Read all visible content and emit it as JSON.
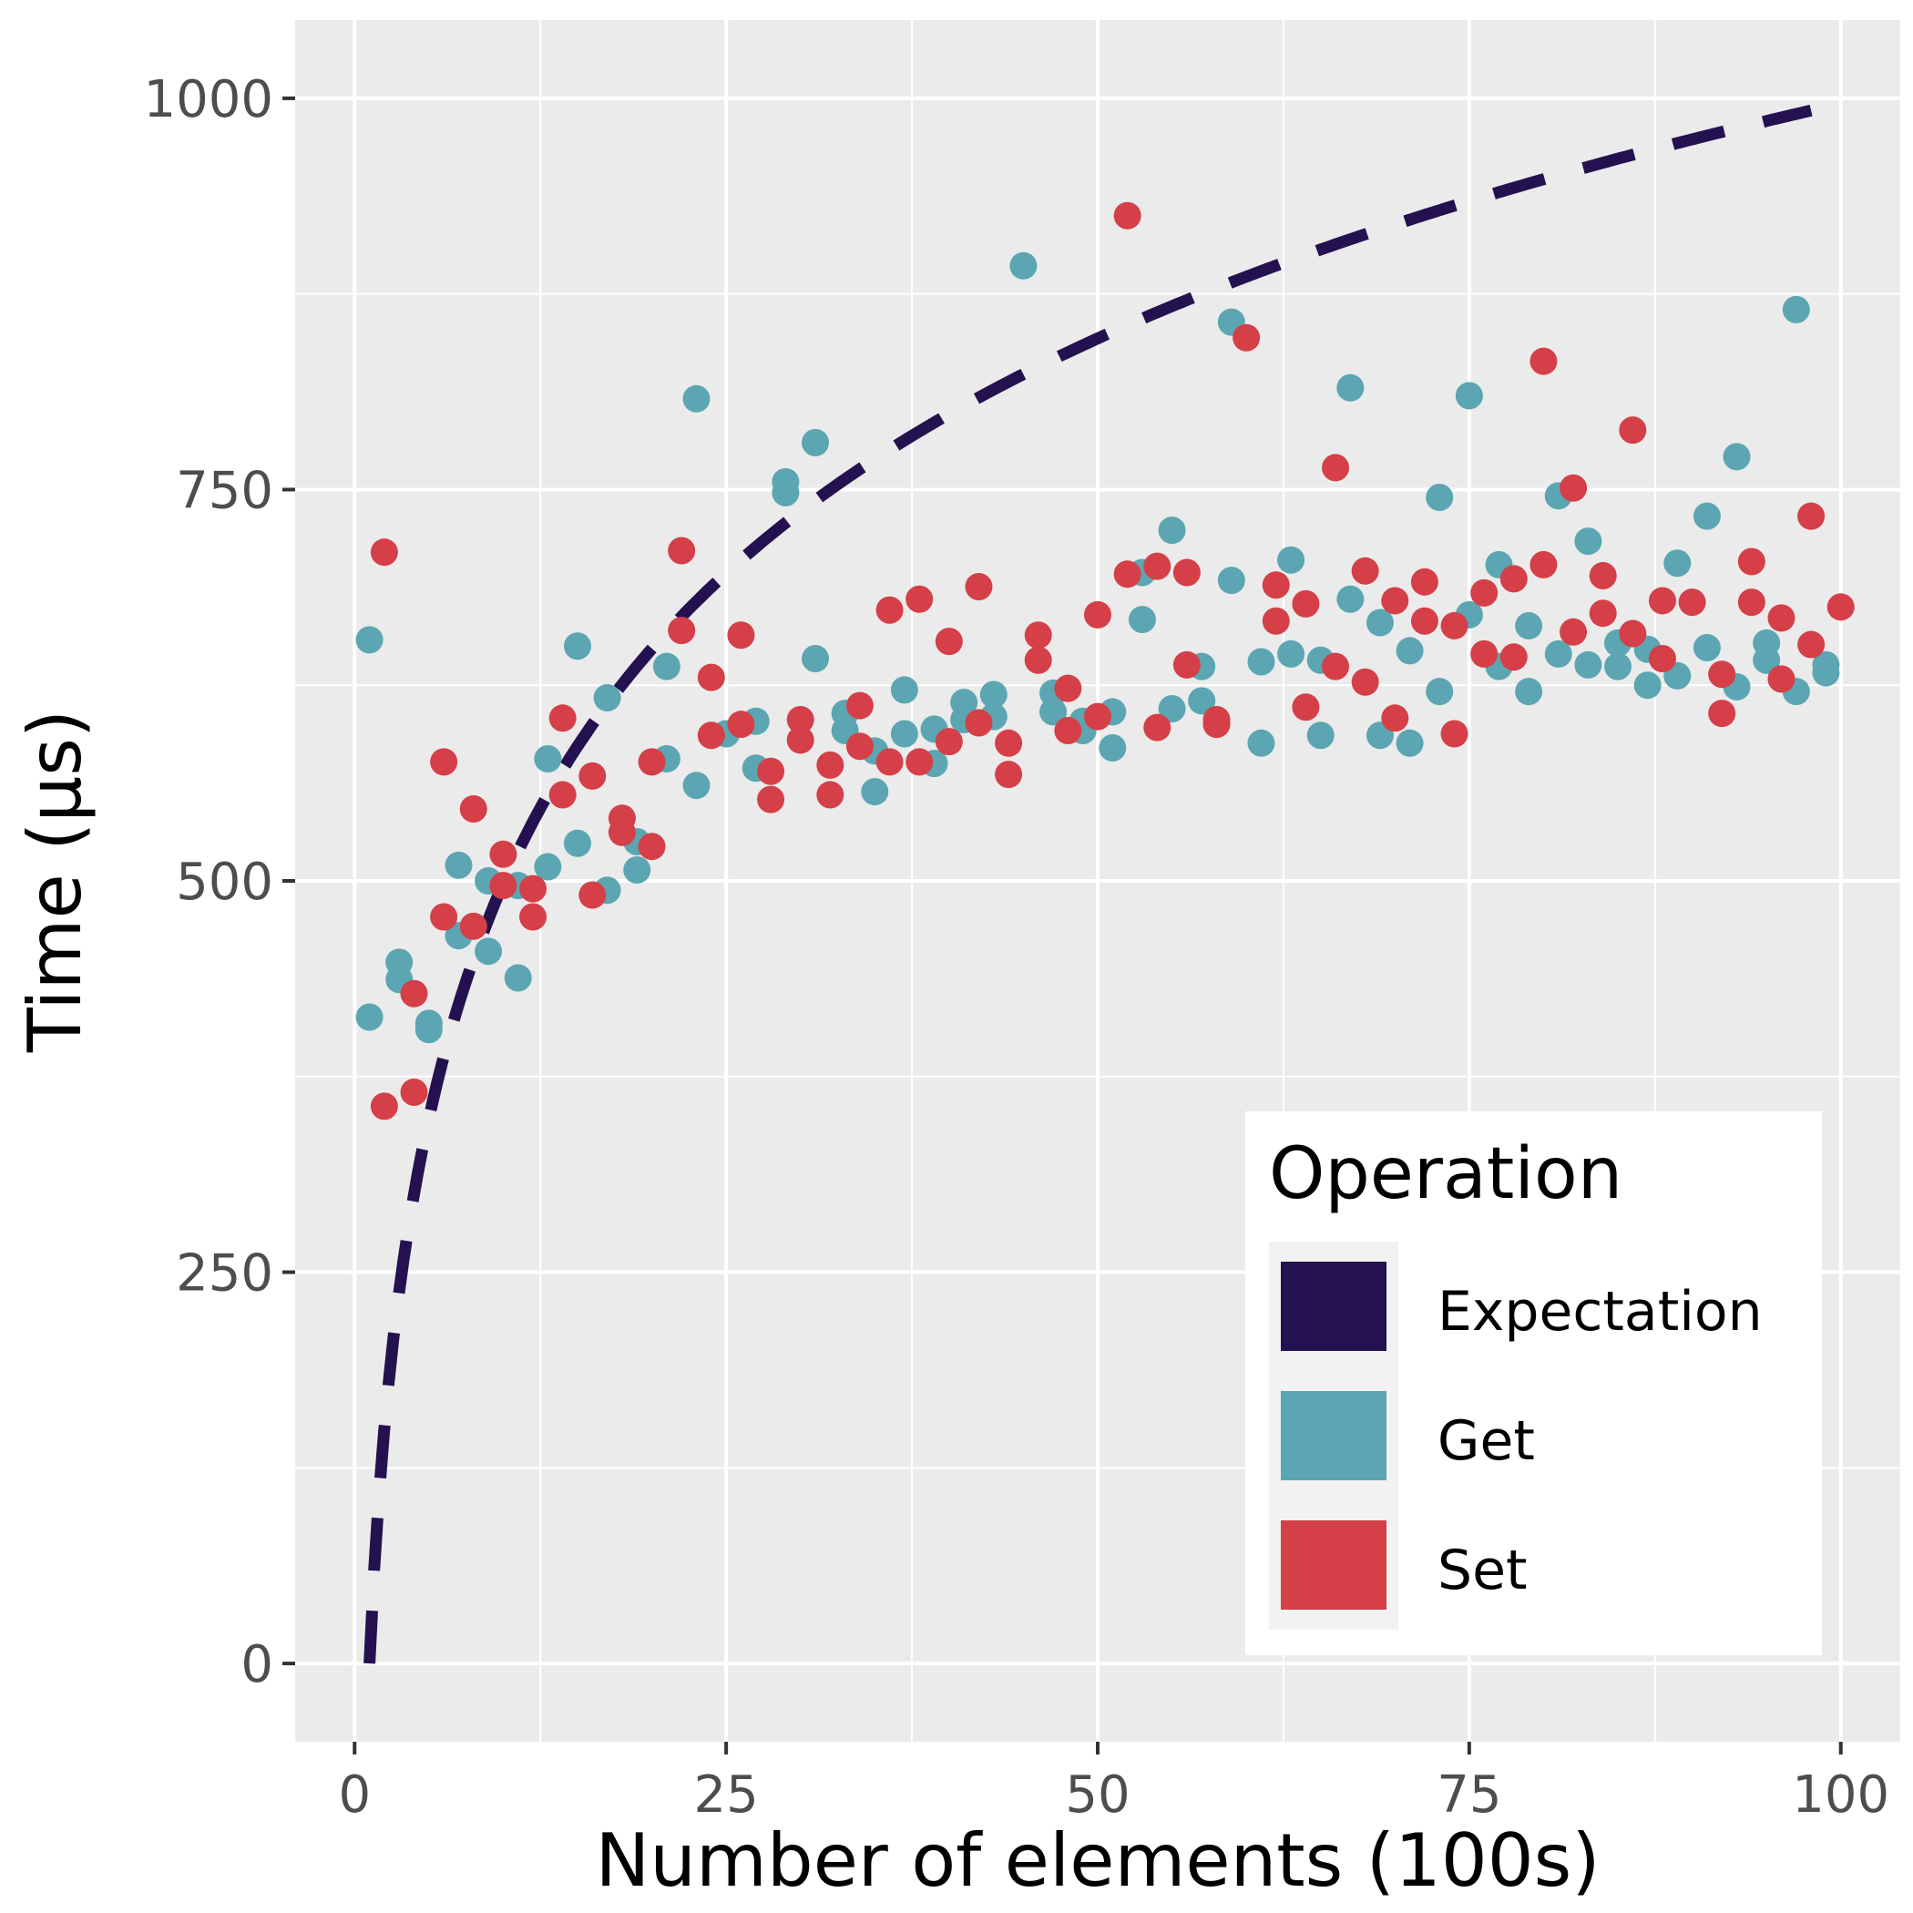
{
  "colors": {
    "panel_bg": "#EBEBEB",
    "grid": "#FFFFFF",
    "expectation": "#24114F",
    "get": "#5BA6B2",
    "set": "#D43F48",
    "tick_text": "#4D4D4D"
  },
  "chart_data": {
    "type": "scatter",
    "xlabel": "Number of elements (100s)",
    "ylabel": "Time (µs)",
    "xlim": [
      -4,
      104
    ],
    "ylim": [
      -50,
      1050
    ],
    "x_ticks": [
      0,
      25,
      50,
      75,
      100
    ],
    "y_ticks": [
      0,
      250,
      500,
      750,
      1000
    ],
    "x_tick_labels": [
      "0",
      "25",
      "50",
      "75",
      "100"
    ],
    "y_tick_labels": [
      "0",
      "250",
      "500",
      "750",
      "1000"
    ],
    "grid": true,
    "legend": {
      "title": "Operation",
      "position": "bottom-right",
      "entries": [
        "Expectation",
        "Get",
        "Set"
      ]
    },
    "expectation_line": {
      "style": "dashed",
      "x_range": [
        1,
        98
      ],
      "model": "150 * log2(x)",
      "points": [
        [
          1,
          0
        ],
        [
          2,
          150
        ],
        [
          4,
          300
        ],
        [
          8,
          450
        ],
        [
          16,
          600
        ],
        [
          32,
          750
        ],
        [
          64,
          900
        ],
        [
          98,
          992
        ]
      ]
    },
    "series": [
      {
        "name": "Get",
        "points": [
          [
            1,
            413
          ],
          [
            1,
            654
          ],
          [
            3,
            448
          ],
          [
            3,
            437
          ],
          [
            5,
            409
          ],
          [
            5,
            405
          ],
          [
            7,
            510
          ],
          [
            7,
            465
          ],
          [
            9,
            500
          ],
          [
            9,
            455
          ],
          [
            11,
            438
          ],
          [
            11,
            497
          ],
          [
            13,
            578
          ],
          [
            13,
            509
          ],
          [
            15,
            650
          ],
          [
            15,
            524
          ],
          [
            17,
            617
          ],
          [
            17,
            494
          ],
          [
            19,
            525
          ],
          [
            19,
            507
          ],
          [
            21,
            637
          ],
          [
            21,
            578
          ],
          [
            23,
            808
          ],
          [
            23,
            561
          ],
          [
            25,
            594
          ],
          [
            27,
            602
          ],
          [
            27,
            572
          ],
          [
            29,
            755
          ],
          [
            29,
            748
          ],
          [
            31,
            780
          ],
          [
            31,
            642
          ],
          [
            33,
            607
          ],
          [
            33,
            596
          ],
          [
            35,
            583
          ],
          [
            35,
            557
          ],
          [
            37,
            622
          ],
          [
            37,
            594
          ],
          [
            39,
            597
          ],
          [
            39,
            575
          ],
          [
            41,
            614
          ],
          [
            41,
            603
          ],
          [
            43,
            619
          ],
          [
            43,
            605
          ],
          [
            45,
            893
          ],
          [
            47,
            620
          ],
          [
            47,
            608
          ],
          [
            49,
            602
          ],
          [
            49,
            596
          ],
          [
            51,
            608
          ],
          [
            51,
            585
          ],
          [
            53,
            697
          ],
          [
            53,
            667
          ],
          [
            55,
            724
          ],
          [
            55,
            610
          ],
          [
            57,
            637
          ],
          [
            57,
            615
          ],
          [
            59,
            857
          ],
          [
            59,
            692
          ],
          [
            61,
            640
          ],
          [
            61,
            588
          ],
          [
            63,
            705
          ],
          [
            63,
            645
          ],
          [
            65,
            641
          ],
          [
            65,
            593
          ],
          [
            67,
            815
          ],
          [
            67,
            680
          ],
          [
            69,
            665
          ],
          [
            69,
            593
          ],
          [
            71,
            647
          ],
          [
            71,
            588
          ],
          [
            73,
            745
          ],
          [
            73,
            621
          ],
          [
            75,
            810
          ],
          [
            75,
            670
          ],
          [
            77,
            702
          ],
          [
            77,
            637
          ],
          [
            79,
            663
          ],
          [
            79,
            621
          ],
          [
            81,
            746
          ],
          [
            81,
            645
          ],
          [
            83,
            717
          ],
          [
            83,
            638
          ],
          [
            85,
            652
          ],
          [
            85,
            637
          ],
          [
            87,
            648
          ],
          [
            87,
            625
          ],
          [
            89,
            703
          ],
          [
            89,
            631
          ],
          [
            91,
            733
          ],
          [
            91,
            649
          ],
          [
            93,
            771
          ],
          [
            93,
            624
          ],
          [
            95,
            652
          ],
          [
            95,
            641
          ],
          [
            97,
            865
          ],
          [
            97,
            621
          ],
          [
            99,
            638
          ],
          [
            99,
            633
          ]
        ]
      },
      {
        "name": "Set",
        "points": [
          [
            2,
            710
          ],
          [
            2,
            356
          ],
          [
            4,
            428
          ],
          [
            4,
            365
          ],
          [
            6,
            576
          ],
          [
            6,
            477
          ],
          [
            8,
            546
          ],
          [
            8,
            471
          ],
          [
            10,
            517
          ],
          [
            10,
            497
          ],
          [
            12,
            495
          ],
          [
            12,
            477
          ],
          [
            14,
            604
          ],
          [
            14,
            555
          ],
          [
            16,
            567
          ],
          [
            16,
            491
          ],
          [
            18,
            540
          ],
          [
            18,
            531
          ],
          [
            20,
            576
          ],
          [
            20,
            522
          ],
          [
            22,
            711
          ],
          [
            22,
            660
          ],
          [
            24,
            630
          ],
          [
            24,
            593
          ],
          [
            26,
            657
          ],
          [
            26,
            600
          ],
          [
            28,
            570
          ],
          [
            28,
            552
          ],
          [
            30,
            603
          ],
          [
            30,
            590
          ],
          [
            32,
            574
          ],
          [
            32,
            555
          ],
          [
            34,
            612
          ],
          [
            34,
            586
          ],
          [
            36,
            673
          ],
          [
            36,
            576
          ],
          [
            38,
            680
          ],
          [
            38,
            576
          ],
          [
            40,
            653
          ],
          [
            40,
            589
          ],
          [
            42,
            688
          ],
          [
            42,
            601
          ],
          [
            44,
            588
          ],
          [
            44,
            568
          ],
          [
            46,
            657
          ],
          [
            46,
            641
          ],
          [
            48,
            623
          ],
          [
            48,
            596
          ],
          [
            50,
            670
          ],
          [
            50,
            605
          ],
          [
            52,
            925
          ],
          [
            52,
            696
          ],
          [
            54,
            701
          ],
          [
            54,
            598
          ],
          [
            56,
            697
          ],
          [
            56,
            638
          ],
          [
            58,
            603
          ],
          [
            58,
            600
          ],
          [
            60,
            847
          ],
          [
            62,
            689
          ],
          [
            62,
            666
          ],
          [
            64,
            677
          ],
          [
            64,
            611
          ],
          [
            66,
            764
          ],
          [
            66,
            637
          ],
          [
            68,
            698
          ],
          [
            68,
            627
          ],
          [
            70,
            679
          ],
          [
            70,
            604
          ],
          [
            72,
            691
          ],
          [
            72,
            666
          ],
          [
            74,
            663
          ],
          [
            74,
            594
          ],
          [
            76,
            684
          ],
          [
            76,
            645
          ],
          [
            78,
            693
          ],
          [
            78,
            643
          ],
          [
            80,
            832
          ],
          [
            80,
            702
          ],
          [
            82,
            751
          ],
          [
            82,
            659
          ],
          [
            84,
            695
          ],
          [
            84,
            671
          ],
          [
            86,
            788
          ],
          [
            86,
            658
          ],
          [
            88,
            679
          ],
          [
            88,
            642
          ],
          [
            90,
            678
          ],
          [
            92,
            632
          ],
          [
            92,
            607
          ],
          [
            94,
            704
          ],
          [
            94,
            678
          ],
          [
            96,
            668
          ],
          [
            96,
            629
          ],
          [
            98,
            733
          ],
          [
            98,
            651
          ],
          [
            100,
            675
          ]
        ]
      }
    ]
  }
}
